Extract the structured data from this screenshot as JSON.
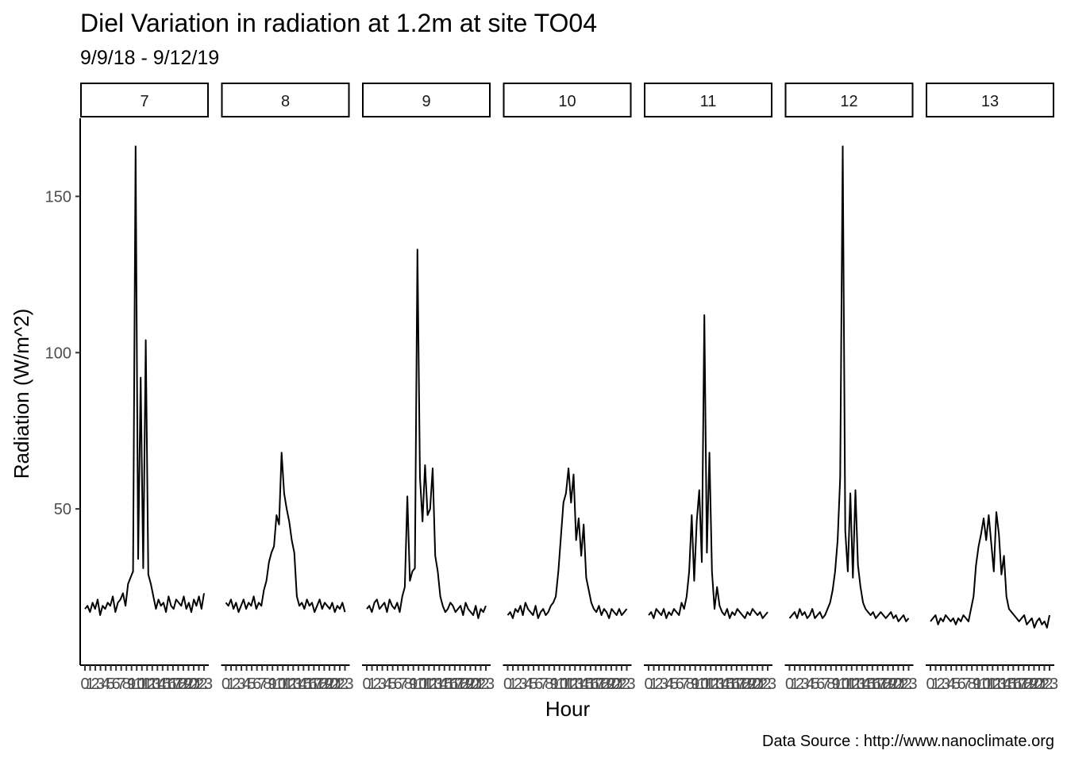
{
  "chart_data": {
    "type": "line",
    "title": "Diel Variation in radiation at 1.2m at site TO04",
    "subtitle": "9/9/18 - 9/12/19",
    "xlabel": "Hour",
    "ylabel": "Radiation (W/m^2)",
    "caption": "Data Source : http://www.nanoclimate.org",
    "ylim": [
      0,
      175
    ],
    "yticks": [
      50,
      100,
      150
    ],
    "x_ticks": [
      "0",
      "1",
      "2",
      "3",
      "4",
      "5",
      "6",
      "7",
      "8",
      "9",
      "10",
      "11",
      "12",
      "13",
      "14",
      "15",
      "16",
      "17",
      "18",
      "19",
      "20",
      "21",
      "22",
      "23"
    ],
    "grid": false,
    "legend": "none",
    "line_color": "#000000",
    "panels": [
      {
        "label": "7",
        "values": [
          18,
          19,
          17,
          20,
          18,
          21,
          16,
          19,
          18,
          20,
          19,
          22,
          17,
          20,
          21,
          23,
          19,
          26,
          28,
          30,
          166,
          34,
          92,
          31,
          104,
          29,
          26,
          22,
          18,
          21,
          19,
          20,
          17,
          22,
          19,
          18,
          21,
          20,
          19,
          22,
          18,
          20,
          17,
          21,
          19,
          22,
          18,
          23
        ]
      },
      {
        "label": "8",
        "values": [
          20,
          19,
          21,
          18,
          20,
          17,
          19,
          21,
          18,
          20,
          19,
          22,
          18,
          20,
          19,
          24,
          27,
          33,
          36,
          38,
          48,
          45,
          68,
          55,
          50,
          46,
          40,
          36,
          22,
          19,
          20,
          18,
          21,
          19,
          20,
          17,
          19,
          21,
          18,
          20,
          19,
          18,
          20,
          17,
          19,
          18,
          20,
          17
        ]
      },
      {
        "label": "9",
        "values": [
          18,
          19,
          17,
          20,
          21,
          18,
          19,
          20,
          17,
          21,
          19,
          18,
          20,
          17,
          22,
          25,
          54,
          27,
          30,
          31,
          133,
          60,
          46,
          64,
          48,
          50,
          63,
          35,
          30,
          22,
          19,
          17,
          18,
          20,
          19,
          17,
          18,
          19,
          16,
          20,
          18,
          17,
          16,
          19,
          15,
          18,
          17,
          19
        ]
      },
      {
        "label": "10",
        "values": [
          16,
          17,
          15,
          18,
          17,
          19,
          16,
          20,
          18,
          17,
          16,
          19,
          15,
          17,
          18,
          16,
          17,
          19,
          20,
          22,
          30,
          41,
          52,
          55,
          63,
          52,
          61,
          40,
          47,
          35,
          45,
          28,
          24,
          20,
          18,
          17,
          19,
          16,
          18,
          17,
          15,
          18,
          17,
          16,
          18,
          16,
          17,
          18
        ]
      },
      {
        "label": "11",
        "values": [
          16,
          17,
          15,
          18,
          17,
          16,
          18,
          15,
          17,
          16,
          18,
          17,
          16,
          20,
          18,
          22,
          30,
          48,
          27,
          46,
          56,
          33,
          112,
          36,
          68,
          30,
          18,
          25,
          19,
          17,
          16,
          18,
          15,
          17,
          16,
          18,
          17,
          16,
          15,
          17,
          16,
          18,
          17,
          16,
          17,
          15,
          16,
          17
        ]
      },
      {
        "label": "12",
        "values": [
          15,
          16,
          17,
          15,
          18,
          16,
          17,
          15,
          16,
          18,
          15,
          16,
          17,
          15,
          16,
          18,
          20,
          24,
          30,
          40,
          60,
          166,
          43,
          30,
          55,
          28,
          56,
          32,
          25,
          20,
          18,
          17,
          16,
          17,
          15,
          16,
          17,
          16,
          15,
          16,
          17,
          15,
          16,
          14,
          15,
          16,
          14,
          15
        ]
      },
      {
        "label": "13",
        "values": [
          14,
          15,
          16,
          13,
          15,
          14,
          16,
          15,
          14,
          15,
          13,
          15,
          14,
          16,
          15,
          14,
          18,
          22,
          32,
          38,
          42,
          47,
          40,
          48,
          39,
          30,
          49,
          42,
          29,
          35,
          22,
          18,
          17,
          16,
          15,
          14,
          15,
          16,
          13,
          14,
          15,
          12,
          14,
          15,
          13,
          14,
          12,
          16
        ]
      }
    ]
  }
}
